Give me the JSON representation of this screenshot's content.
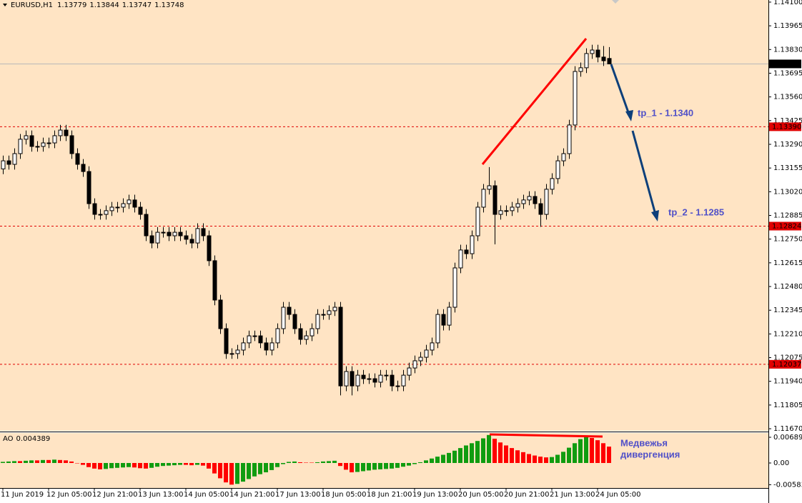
{
  "chart_data": {
    "type": "candlestick",
    "title": "EURUSD,H1",
    "background": "#ffe4c4",
    "up_color": "#ffffff",
    "down_color": "#000000",
    "open": [
      1.1315,
      1.13196,
      1.13176,
      1.13237,
      1.13319,
      1.13339,
      1.13278,
      1.13278,
      1.13298,
      1.13298,
      1.13339,
      1.13371,
      1.13339,
      1.13237,
      1.13176,
      1.13135,
      1.12952,
      1.12891,
      1.12891,
      1.12912,
      1.12932,
      1.12932,
      1.12952,
      1.12973,
      1.12932,
      1.12891,
      1.12769,
      1.12728,
      1.12789,
      1.12789,
      1.12769,
      1.12789,
      1.12769,
      1.12749,
      1.12728,
      1.1281,
      1.12769,
      1.12627,
      1.12403,
      1.1224,
      1.12098,
      1.12098,
      1.12118,
      1.12159,
      1.12199,
      1.12199,
      1.12159,
      1.12118,
      1.12159,
      1.1224,
      1.12362,
      1.12321,
      1.1224,
      1.12179,
      1.12199,
      1.1224,
      1.12321,
      1.12321,
      1.12342,
      1.12362,
      1.11914,
      1.11996,
      1.11914,
      1.11975,
      1.11955,
      1.11955,
      1.11935,
      1.11975,
      1.11975,
      1.11914,
      1.11914,
      1.11975,
      1.12016,
      1.12057,
      1.12077,
      1.12118,
      1.12159,
      1.12321,
      1.1226,
      1.12362,
      1.12586,
      1.12688,
      1.12667,
      1.12769,
      1.12932,
      1.13034,
      1.13054,
      1.12891,
      1.12912,
      1.12912,
      1.12932,
      1.12952,
      1.12973,
      1.12993,
      1.12952,
      1.12891,
      1.13034,
      1.13095,
      1.13196,
      1.13237,
      1.134,
      1.13705,
      1.13726,
      1.13807,
      1.13827,
      1.13787,
      1.13779
    ],
    "high": [
      1.13226,
      1.13226,
      1.13267,
      1.13349,
      1.13369,
      1.13369,
      1.13308,
      1.13328,
      1.13328,
      1.13369,
      1.13401,
      1.13401,
      1.13369,
      1.13267,
      1.13206,
      1.13165,
      1.12982,
      1.12921,
      1.12942,
      1.12962,
      1.12962,
      1.12982,
      1.13003,
      1.13003,
      1.12962,
      1.12921,
      1.12799,
      1.12819,
      1.12819,
      1.12819,
      1.12819,
      1.12819,
      1.12799,
      1.12779,
      1.1284,
      1.1284,
      1.12799,
      1.12657,
      1.12433,
      1.1227,
      1.12128,
      1.12148,
      1.12189,
      1.12229,
      1.12229,
      1.12229,
      1.12189,
      1.12189,
      1.1227,
      1.12392,
      1.12392,
      1.12351,
      1.1227,
      1.12229,
      1.1227,
      1.12351,
      1.12351,
      1.12372,
      1.12392,
      1.12392,
      1.12026,
      1.12026,
      1.12005,
      1.12005,
      1.11985,
      1.11985,
      1.12005,
      1.12005,
      1.12005,
      1.11944,
      1.12005,
      1.12046,
      1.12087,
      1.12107,
      1.12148,
      1.12189,
      1.12351,
      1.12351,
      1.12392,
      1.12616,
      1.12718,
      1.12718,
      1.12799,
      1.12962,
      1.13064,
      1.1316,
      1.13084,
      1.12942,
      1.12942,
      1.12962,
      1.12982,
      1.13003,
      1.13023,
      1.13023,
      1.12982,
      1.13064,
      1.13125,
      1.13226,
      1.13267,
      1.1343,
      1.13735,
      1.13756,
      1.13837,
      1.13857,
      1.13857,
      1.1385,
      1.13844
    ],
    "low": [
      1.1312,
      1.13146,
      1.13146,
      1.13207,
      1.13289,
      1.13248,
      1.13248,
      1.13248,
      1.13268,
      1.13268,
      1.13309,
      1.13309,
      1.13207,
      1.13146,
      1.13105,
      1.12922,
      1.12861,
      1.12861,
      1.12861,
      1.12882,
      1.12902,
      1.12902,
      1.12922,
      1.12902,
      1.12861,
      1.12739,
      1.12698,
      1.12698,
      1.12759,
      1.12739,
      1.12739,
      1.12739,
      1.12719,
      1.12698,
      1.12698,
      1.12739,
      1.12597,
      1.12373,
      1.1221,
      1.12068,
      1.12068,
      1.12068,
      1.12088,
      1.12129,
      1.12169,
      1.12129,
      1.12088,
      1.12088,
      1.12129,
      1.1221,
      1.12291,
      1.1221,
      1.12149,
      1.12149,
      1.12169,
      1.1221,
      1.12291,
      1.12291,
      1.12312,
      1.1186,
      1.11884,
      1.1186,
      1.11884,
      1.11925,
      1.11925,
      1.11905,
      1.11905,
      1.11945,
      1.11884,
      1.11884,
      1.11884,
      1.11945,
      1.11986,
      1.12027,
      1.12047,
      1.12088,
      1.12129,
      1.1223,
      1.1223,
      1.12332,
      1.12556,
      1.12637,
      1.12637,
      1.12739,
      1.12902,
      1.13004,
      1.1272,
      1.12861,
      1.12882,
      1.12882,
      1.12902,
      1.12922,
      1.12943,
      1.12922,
      1.1282,
      1.12861,
      1.13004,
      1.13065,
      1.13166,
      1.13207,
      1.1337,
      1.13675,
      1.13696,
      1.13777,
      1.13757,
      1.13736,
      1.13747
    ],
    "close": [
      1.13196,
      1.13176,
      1.13237,
      1.13319,
      1.13339,
      1.13278,
      1.13278,
      1.13298,
      1.13298,
      1.13339,
      1.13371,
      1.13339,
      1.13237,
      1.13176,
      1.13135,
      1.12952,
      1.12891,
      1.12891,
      1.12912,
      1.12932,
      1.12932,
      1.12952,
      1.12973,
      1.12932,
      1.12891,
      1.12769,
      1.12728,
      1.12789,
      1.12789,
      1.12769,
      1.12789,
      1.12769,
      1.12749,
      1.12728,
      1.1281,
      1.12769,
      1.12627,
      1.12403,
      1.1224,
      1.12098,
      1.12098,
      1.12118,
      1.12159,
      1.12199,
      1.12199,
      1.12159,
      1.12118,
      1.12159,
      1.1224,
      1.12362,
      1.12321,
      1.1224,
      1.12179,
      1.12199,
      1.1224,
      1.12321,
      1.12321,
      1.12342,
      1.12362,
      1.11914,
      1.11996,
      1.11914,
      1.11975,
      1.11955,
      1.11955,
      1.11935,
      1.11975,
      1.11975,
      1.11914,
      1.11914,
      1.11975,
      1.12016,
      1.12057,
      1.12077,
      1.12118,
      1.12159,
      1.12321,
      1.1226,
      1.12362,
      1.12586,
      1.12688,
      1.12667,
      1.12769,
      1.12932,
      1.13034,
      1.13054,
      1.12891,
      1.12912,
      1.12912,
      1.12932,
      1.12952,
      1.12973,
      1.12993,
      1.12952,
      1.12891,
      1.13034,
      1.13095,
      1.13196,
      1.13237,
      1.134,
      1.13705,
      1.13726,
      1.13807,
      1.13827,
      1.13787,
      1.13766,
      1.13748
    ],
    "ylim": [
      1.11658,
      1.14112
    ],
    "yticks": [
      {
        "value": 1.141,
        "label": "1.14100"
      },
      1.13965,
      {
        "value": 1.1383,
        "label": "1.13830"
      },
      1.13695,
      {
        "value": 1.1356,
        "label": "1.13560"
      },
      1.13425,
      {
        "value": 1.1329,
        "label": "1.13290"
      },
      1.13155,
      {
        "value": 1.1302,
        "label": "1.13020"
      },
      1.12885,
      {
        "value": 1.1275,
        "label": "1.12750"
      },
      1.12615,
      {
        "value": 1.1248,
        "label": "1.12480"
      },
      1.12345,
      {
        "value": 1.1221,
        "label": "1.12210"
      },
      1.12075,
      {
        "value": 1.1194,
        "label": "1.11940"
      },
      1.11805,
      {
        "value": 1.1167,
        "label": "1.11670"
      }
    ],
    "xticks": [
      {
        "value": 0,
        "label": "11 Jun 2019"
      },
      {
        "value": 8,
        "label": "12 Jun 05:00"
      },
      {
        "value": 16,
        "label": "12 Jun 21:00"
      },
      {
        "value": 24,
        "label": "13 Jun 13:00"
      },
      {
        "value": 32,
        "label": "14 Jun 05:00"
      },
      {
        "value": 40,
        "label": "14 Jun 21:00"
      },
      {
        "value": 48,
        "label": "17 Jun 13:00"
      },
      {
        "value": 56,
        "label": "18 Jun 05:00"
      },
      {
        "value": 64,
        "label": "18 Jun 21:00"
      },
      {
        "value": 72,
        "label": "19 Jun 13:00"
      },
      {
        "value": 80,
        "label": "20 Jun 05:00"
      },
      {
        "value": 88,
        "label": "20 Jun 21:00"
      },
      {
        "value": 96,
        "label": "21 Jun 13:00"
      },
      {
        "value": 104,
        "label": "24 Jun 05:00"
      }
    ],
    "last_price": 1.13748,
    "levels": [
      {
        "value": 1.1339,
        "label": "1.13390"
      },
      {
        "value": 1.12824,
        "label": "1.12824"
      },
      {
        "value": 1.12037,
        "label": "1.12037"
      }
    ],
    "level_color": "#e00000",
    "annotations": [
      "tp_1 - 1.1340",
      "tp_2 - 1.1285",
      "Медвежья",
      "дивергенция"
    ],
    "indicator": {
      "type": "bar",
      "title": "AO",
      "up_color": "#109c10",
      "down_color": "#ff0000",
      "values": [
        0.0003,
        0.0004,
        0.0005,
        0.0005,
        0.0006,
        0.0007,
        0.0007,
        0.0008,
        0.0008,
        0.0009,
        0.0008,
        0.0007,
        0.0004,
        0.0,
        -0.0005,
        -0.0011,
        -0.0015,
        -0.0017,
        -0.0016,
        -0.0014,
        -0.0013,
        -0.0012,
        -0.0011,
        -0.0012,
        -0.0014,
        -0.0015,
        -0.0013,
        -0.001,
        -0.0008,
        -0.0007,
        -0.0006,
        -0.0005,
        -0.0005,
        -0.0006,
        -0.0005,
        -0.0007,
        -0.0015,
        -0.0028,
        -0.0041,
        -0.0052,
        -0.0058,
        -0.0056,
        -0.005,
        -0.0043,
        -0.0036,
        -0.003,
        -0.0025,
        -0.0019,
        -0.0011,
        -0.0003,
        0.0003,
        0.0004,
        0.0002,
        0.0001,
        0.0001,
        0.0002,
        0.0004,
        0.0005,
        0.0006,
        -0.0008,
        -0.0018,
        -0.0025,
        -0.0024,
        -0.0022,
        -0.002,
        -0.0018,
        -0.0017,
        -0.0016,
        -0.0015,
        -0.0013,
        -0.001,
        -0.0007,
        -0.0003,
        0.0002,
        0.0007,
        0.0012,
        0.0017,
        0.0022,
        0.0027,
        0.0033,
        0.004,
        0.0047,
        0.0053,
        0.0059,
        0.0066,
        0.0075,
        0.0065,
        0.0055,
        0.0047,
        0.004,
        0.0034,
        0.0029,
        0.0024,
        0.002,
        0.0017,
        0.0015,
        0.0016,
        0.0022,
        0.003,
        0.0041,
        0.0053,
        0.0064,
        0.0069,
        0.0067,
        0.0061,
        0.0053,
        0.004389
      ],
      "ylim": [
        -0.0067,
        0.00804
      ],
      "yticks": [
        0.006892,
        {
          "value": 0,
          "label": "0.00"
        },
        {
          "value": -0.00583,
          "label": "-0.005830"
        }
      ]
    }
  }
}
